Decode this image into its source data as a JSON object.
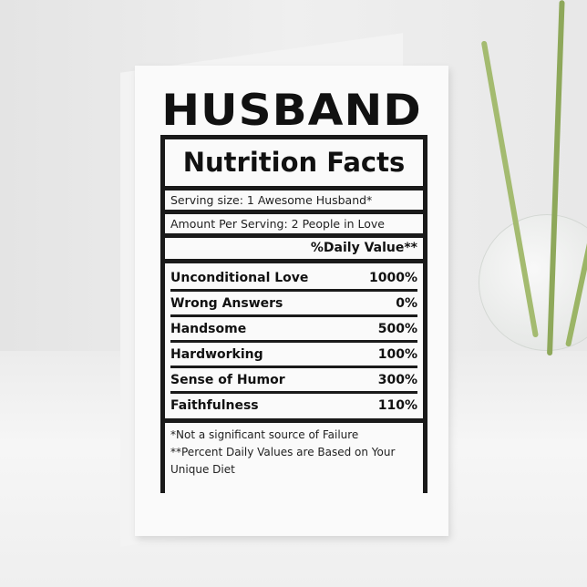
{
  "card": {
    "title": "HUSBAND",
    "heading": "Nutrition Facts",
    "serving_size": "Serving size: 1 Awesome Husband*",
    "amount_per_serving": "Amount Per Serving: 2 People in Love",
    "daily_value_header": "%Daily Value**",
    "nutrients": [
      {
        "name": "Unconditional Love",
        "value": "1000%"
      },
      {
        "name": "Wrong Answers",
        "value": "0%"
      },
      {
        "name": "Handsome",
        "value": "500%"
      },
      {
        "name": "Hardworking",
        "value": "100%"
      },
      {
        "name": "Sense of Humor",
        "value": "300%"
      },
      {
        "name": "Faithfulness",
        "value": "110%"
      }
    ],
    "footnotes": [
      "*Not a significant source of Failure",
      "**Percent Daily Values are Based on Your Unique Diet"
    ]
  }
}
